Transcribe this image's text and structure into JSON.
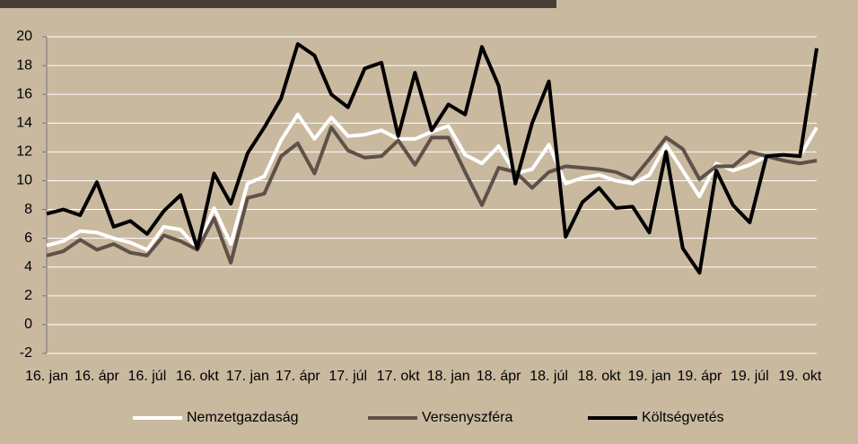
{
  "chart_data": {
    "type": "line",
    "categories": [
      "16. jan",
      null,
      null,
      "16. ápr",
      null,
      null,
      "16. júl",
      null,
      null,
      "16. okt",
      null,
      null,
      "17. jan",
      null,
      null,
      "17. ápr",
      null,
      null,
      "17. júl",
      null,
      null,
      "17. okt",
      null,
      null,
      "18. jan",
      null,
      null,
      "18. ápr",
      null,
      null,
      "18. júl",
      null,
      null,
      "18. okt",
      null,
      null,
      "19. jan",
      null,
      null,
      "19. ápr",
      null,
      null,
      "19. júl",
      null,
      null,
      "19. okt",
      null
    ],
    "series": [
      {
        "name": "Nemzetgazdaság",
        "color": "#ffffff",
        "values": [
          5.5,
          5.8,
          6.5,
          6.4,
          6.0,
          5.7,
          5.2,
          6.8,
          6.6,
          5.3,
          8.1,
          5.6,
          9.8,
          10.3,
          12.8,
          14.6,
          12.9,
          14.4,
          13.1,
          13.2,
          13.5,
          12.9,
          12.9,
          13.4,
          13.8,
          11.8,
          11.2,
          12.4,
          10.5,
          10.8,
          12.5,
          9.8,
          10.2,
          10.4,
          10.0,
          9.8,
          10.4,
          12.5,
          10.7,
          8.9,
          11.2,
          10.7,
          11.1,
          11.7,
          11.8,
          11.7,
          13.7
        ]
      },
      {
        "name": "Versenyszféra",
        "color": "#5f5049",
        "values": [
          4.8,
          5.1,
          5.9,
          5.2,
          5.6,
          5.0,
          4.8,
          6.2,
          5.8,
          5.2,
          7.4,
          4.3,
          8.8,
          9.1,
          11.7,
          12.6,
          10.5,
          13.7,
          12.1,
          11.6,
          11.7,
          12.8,
          11.1,
          13.0,
          13.0,
          10.6,
          8.3,
          10.9,
          10.6,
          9.5,
          10.6,
          11.0,
          10.9,
          10.8,
          10.6,
          10.1,
          11.5,
          13.0,
          12.2,
          10.1,
          11.0,
          11.0,
          12.0,
          11.7,
          11.4,
          11.2,
          11.4
        ]
      },
      {
        "name": "Költségvetés",
        "color": "#000000",
        "values": [
          7.7,
          8.0,
          7.6,
          9.9,
          6.8,
          7.2,
          6.3,
          7.9,
          9.0,
          5.3,
          10.5,
          8.4,
          11.9,
          13.7,
          15.7,
          19.5,
          18.7,
          16.0,
          15.1,
          17.8,
          18.2,
          13.1,
          17.5,
          13.5,
          15.3,
          14.6,
          19.3,
          16.6,
          9.8,
          14.0,
          16.9,
          6.1,
          8.5,
          9.5,
          8.1,
          8.2,
          6.4,
          12.0,
          5.3,
          3.6,
          10.7,
          8.3,
          7.1,
          11.7,
          11.8,
          11.7,
          19.2
        ]
      }
    ],
    "ylim": [
      -2,
      20
    ],
    "yticks": [
      -2,
      0,
      2,
      4,
      6,
      8,
      10,
      12,
      14,
      16,
      18,
      20
    ],
    "grid": true,
    "legend": "bottom"
  }
}
